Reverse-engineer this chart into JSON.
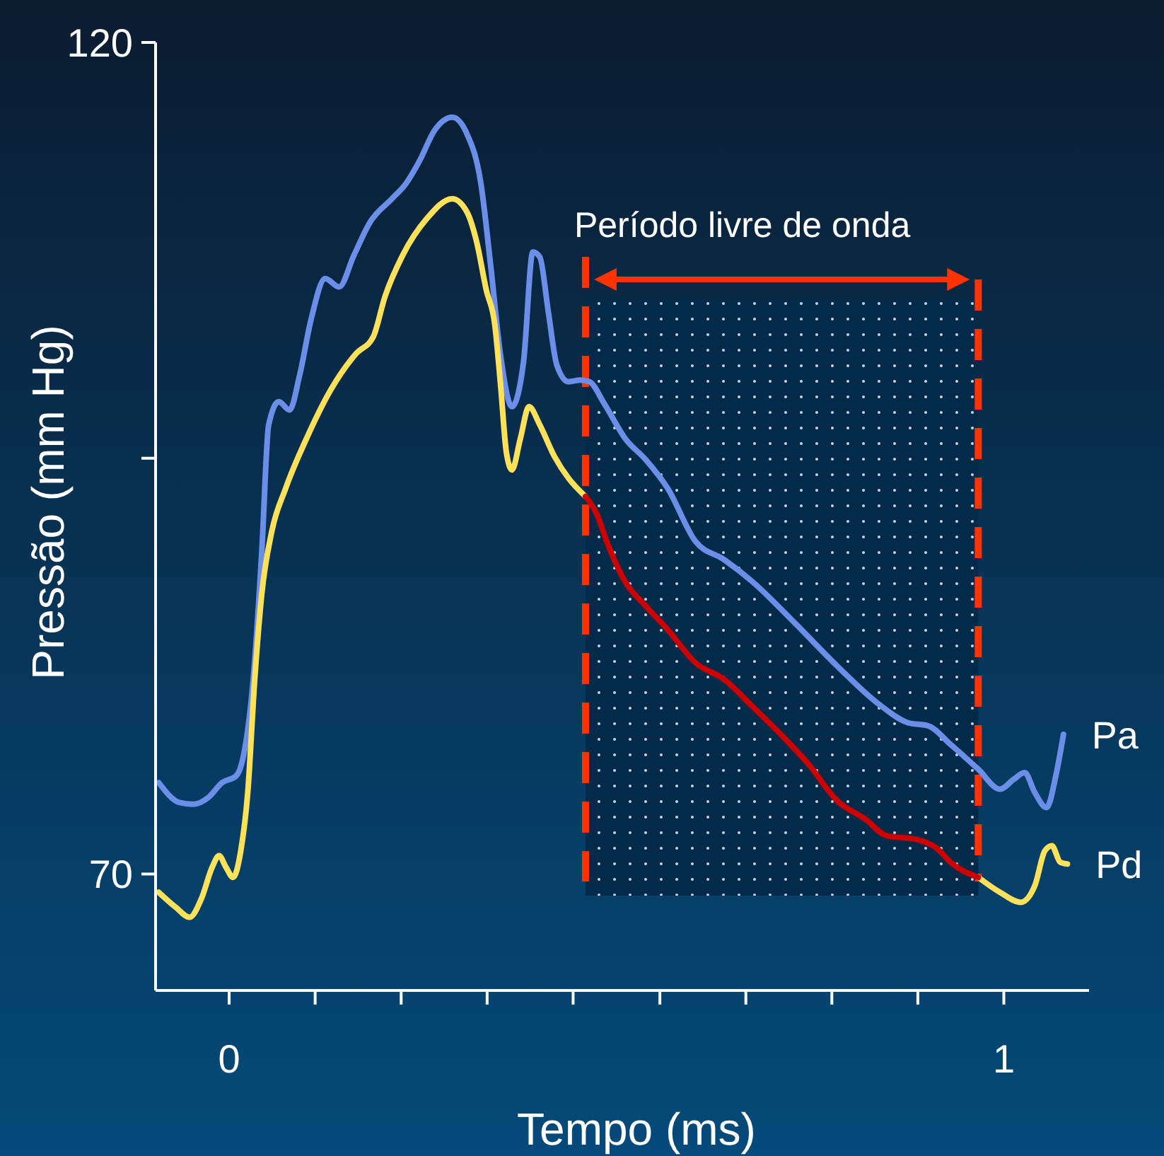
{
  "chart_data": {
    "type": "line",
    "xlabel": "Tempo (ms)",
    "ylabel": "Pressão (mm Hg)",
    "xlim": [
      -0.095,
      1.11
    ],
    "ylim": [
      63,
      120
    ],
    "xticks": [
      0,
      {
        "value": 0.111,
        "label": null
      },
      {
        "value": 0.222,
        "label": null
      },
      {
        "value": 0.333,
        "label": null
      },
      {
        "value": 0.444,
        "label": null
      },
      {
        "value": 0.556,
        "label": null
      },
      {
        "value": 0.667,
        "label": null
      },
      {
        "value": 0.778,
        "label": null
      },
      {
        "value": 0.889,
        "label": null
      },
      1
    ],
    "yticks": [
      70,
      {
        "value": 95,
        "label": null
      },
      120
    ],
    "grid": false,
    "legend": false,
    "marker": "none",
    "line_style": "solid",
    "bands": [
      {
        "axis": "x",
        "from": 0.46,
        "to": 0.967,
        "label": "Período livre de onda",
        "color": "#032a48"
      }
    ],
    "ref_lines": [
      {
        "axis": "x",
        "value": 0.46,
        "color": "#ff3300",
        "line_style": "dashed"
      },
      {
        "axis": "x",
        "value": 0.967,
        "color": "#ff3300",
        "line_style": "dashed"
      }
    ],
    "series": [
      {
        "name": "Pa",
        "color": "#6b8fe8",
        "x": [
          -0.091,
          -0.064,
          -0.046,
          -0.027,
          -0.009,
          0.009,
          0.018,
          0.031,
          0.042,
          0.051,
          0.064,
          0.078,
          0.091,
          0.106,
          0.124,
          0.142,
          0.161,
          0.182,
          0.21,
          0.228,
          0.246,
          0.265,
          0.288,
          0.307,
          0.325,
          0.338,
          0.35,
          0.365,
          0.38,
          0.392,
          0.401,
          0.412,
          0.423,
          0.438,
          0.453,
          0.465,
          0.484,
          0.511,
          0.538,
          0.566,
          0.602,
          0.639,
          0.675,
          0.73,
          0.785,
          0.839,
          0.876,
          0.903,
          0.931,
          0.967,
          0.995,
          1.013,
          1.027,
          1.04,
          1.055,
          1.068,
          1.077
        ],
        "values": [
          75.5,
          74.3,
          74.2,
          74.6,
          75.5,
          75.9,
          77.0,
          81.7,
          89.3,
          97.0,
          98.4,
          97.9,
          100.0,
          103.4,
          105.8,
          105.3,
          107.2,
          109.2,
          110.6,
          111.5,
          112.9,
          114.7,
          115.5,
          114.5,
          111.5,
          106.4,
          101.3,
          98.1,
          100.8,
          107.4,
          107.1,
          103.8,
          100.6,
          99.6,
          99.7,
          99.6,
          98.3,
          96.2,
          94.9,
          93.2,
          90.0,
          88.9,
          87.6,
          85.1,
          82.5,
          80.2,
          79.1,
          78.9,
          77.8,
          76.3,
          75.1,
          75.7,
          76.1,
          74.9,
          74.0,
          76.1,
          78.4
        ]
      },
      {
        "name": "Pd",
        "color": "#ffe25a",
        "x": [
          -0.091,
          -0.069,
          -0.051,
          -0.036,
          -0.022,
          -0.013,
          -0.004,
          0.005,
          0.015,
          0.024,
          0.033,
          0.042,
          0.055,
          0.073,
          0.1,
          0.131,
          0.164,
          0.186,
          0.201,
          0.224,
          0.255,
          0.288,
          0.307,
          0.319,
          0.332,
          0.343,
          0.35,
          0.358,
          0.365,
          0.376,
          0.387,
          0.401,
          0.42,
          0.438,
          0.46,
          null,
          0.967,
          0.995,
          1.022,
          1.04,
          1.053,
          1.062,
          1.073,
          1.082
        ],
        "values": [
          68.9,
          68.0,
          67.4,
          68.5,
          70.4,
          71.1,
          70.4,
          69.8,
          71.4,
          74.9,
          81.7,
          86.8,
          90.6,
          93.2,
          96.2,
          99.1,
          101.3,
          102.3,
          104.7,
          107.2,
          109.4,
          110.6,
          109.8,
          108.1,
          105.1,
          103.0,
          99.6,
          95.3,
          94.3,
          96.2,
          98.1,
          97.0,
          95.1,
          93.8,
          92.7,
          null,
          69.8,
          68.9,
          68.3,
          69.3,
          71.4,
          71.7,
          70.7,
          70.6
        ]
      },
      {
        "color": "#cc0000",
        "x": [
          0.46,
          0.474,
          0.489,
          0.511,
          0.538,
          0.566,
          0.602,
          0.639,
          0.675,
          0.712,
          0.748,
          0.785,
          0.821,
          0.849,
          0.885,
          0.912,
          0.934,
          0.967
        ],
        "values": [
          92.7,
          91.7,
          89.8,
          87.6,
          86.1,
          84.7,
          82.7,
          81.7,
          80.1,
          78.4,
          76.6,
          74.4,
          73.3,
          72.3,
          72.1,
          71.6,
          70.6,
          69.8
        ]
      }
    ]
  }
}
